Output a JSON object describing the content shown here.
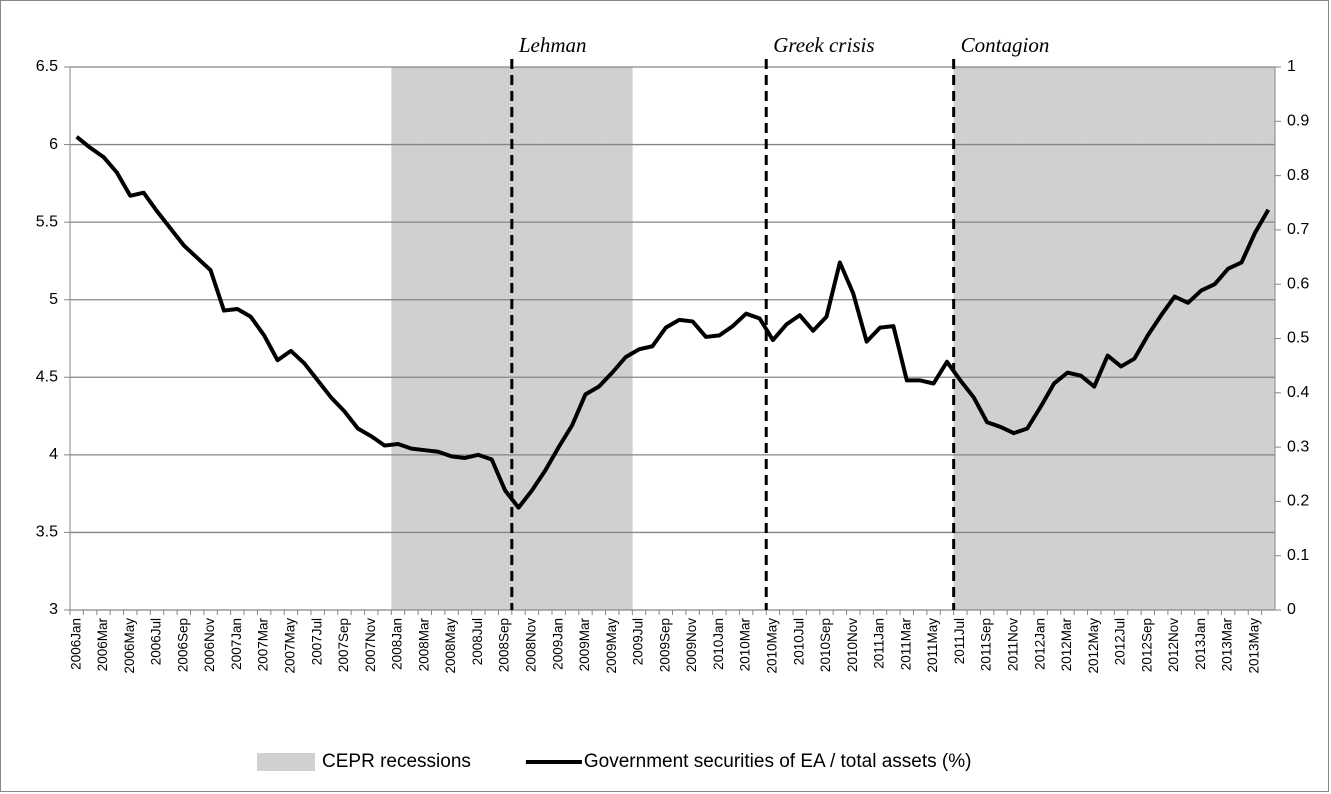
{
  "chart_data": {
    "type": "line",
    "categories": [
      "2006Jan",
      null,
      "2006Mar",
      null,
      "2006May",
      null,
      "2006Jul",
      null,
      "2006Sep",
      null,
      "2006Nov",
      null,
      "2007Jan",
      null,
      "2007Mar",
      null,
      "2007May",
      null,
      "2007Jul",
      null,
      "2007Sep",
      null,
      "2007Nov",
      null,
      "2008Jan",
      null,
      "2008Mar",
      null,
      "2008May",
      null,
      "2008Jul",
      null,
      "2008Sep",
      null,
      "2008Nov",
      null,
      "2009Jan",
      null,
      "2009Mar",
      null,
      "2009May",
      null,
      "2009Jul",
      null,
      "2009Sep",
      null,
      "2009Nov",
      null,
      "2010Jan",
      null,
      "2010Mar",
      null,
      "2010May",
      null,
      "2010Jul",
      null,
      "2010Sep",
      null,
      "2010Nov",
      null,
      "2011Jan",
      null,
      "2011Mar",
      null,
      "2011May",
      null,
      "2011Jul",
      null,
      "2011Sep",
      null,
      "2011Nov",
      null,
      "2012Jan",
      null,
      "2012Mar",
      null,
      "2012May",
      null,
      "2012Jul",
      null,
      "2012Sep",
      null,
      "2012Nov",
      null,
      "2013Jan",
      null,
      "2013Mar",
      null,
      "2013May",
      null
    ],
    "series": [
      {
        "name": "CEPR recessions",
        "type": "bar",
        "axis": "y2",
        "color": "#d0d0d0",
        "values": [
          0,
          0,
          0,
          0,
          0,
          0,
          0,
          0,
          0,
          0,
          0,
          0,
          0,
          0,
          0,
          0,
          0,
          0,
          0,
          0,
          0,
          0,
          0,
          0,
          1,
          1,
          1,
          1,
          1,
          1,
          1,
          1,
          1,
          1,
          1,
          1,
          1,
          1,
          1,
          1,
          1,
          1,
          0,
          0,
          0,
          0,
          0,
          0,
          0,
          0,
          0,
          0,
          0,
          0,
          0,
          0,
          0,
          0,
          0,
          0,
          0,
          0,
          0,
          0,
          0,
          0,
          1,
          1,
          1,
          1,
          1,
          1,
          1,
          1,
          1,
          1,
          1,
          1,
          1,
          1,
          1,
          1,
          1,
          1,
          1,
          1,
          1,
          1,
          1,
          1
        ]
      },
      {
        "name": "Government securities of EA / total assets (%)",
        "type": "line",
        "color": "#000000",
        "values": [
          6.05,
          5.98,
          5.92,
          5.82,
          5.67,
          5.69,
          5.57,
          5.46,
          5.35,
          5.27,
          5.19,
          4.93,
          4.94,
          4.89,
          4.77,
          4.61,
          4.67,
          4.59,
          4.48,
          4.37,
          4.28,
          4.17,
          4.12,
          4.06,
          4.07,
          4.04,
          4.03,
          4.02,
          3.99,
          3.98,
          4.0,
          3.97,
          3.77,
          3.66,
          3.77,
          3.9,
          4.05,
          4.19,
          4.39,
          4.44,
          4.53,
          4.63,
          4.68,
          4.7,
          4.82,
          4.87,
          4.86,
          4.76,
          4.77,
          4.83,
          4.91,
          4.88,
          4.74,
          4.84,
          4.9,
          4.8,
          4.89,
          5.24,
          5.04,
          4.73,
          4.82,
          4.83,
          4.48,
          4.48,
          4.46,
          4.6,
          4.48,
          4.37,
          4.21,
          4.18,
          4.14,
          4.17,
          4.31,
          4.46,
          4.53,
          4.51,
          4.44,
          4.64,
          4.57,
          4.62,
          4.77,
          4.9,
          5.02,
          4.98,
          5.06,
          5.1,
          5.2,
          5.24,
          5.43,
          5.58
        ]
      }
    ],
    "ylim": [
      3,
      6.5
    ],
    "yticks": [
      3,
      3.5,
      4,
      4.5,
      5,
      5.5,
      6,
      6.5
    ],
    "y2lim": [
      0,
      1
    ],
    "y2ticks": [
      0,
      0.1,
      0.2,
      0.3,
      0.4,
      0.5,
      0.6,
      0.7,
      0.8,
      0.9,
      1
    ],
    "grid": true,
    "legend": "bottom",
    "annotations": [
      {
        "text": "Lehman",
        "category_index": 33
      },
      {
        "text": "Greek crisis",
        "category_index": 52
      },
      {
        "text": "Contagion",
        "category_index": 66
      }
    ]
  }
}
